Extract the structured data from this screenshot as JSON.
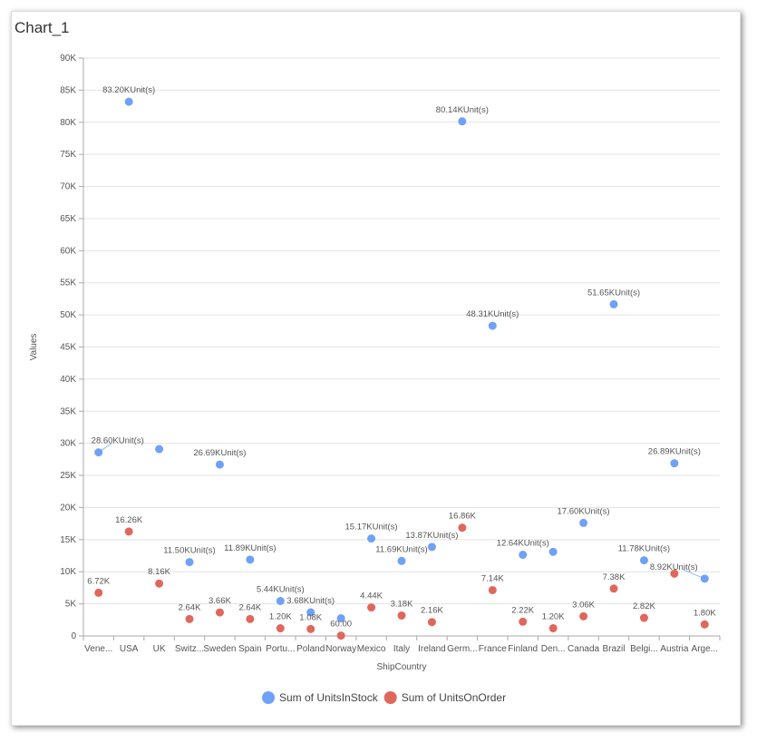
{
  "title": "Chart_1",
  "chart_data": {
    "type": "scatter",
    "xlabel": "ShipCountry",
    "ylabel": "Values",
    "ylim": [
      0,
      90000
    ],
    "yticks": [
      0,
      5000,
      10000,
      15000,
      20000,
      25000,
      30000,
      35000,
      40000,
      45000,
      50000,
      55000,
      60000,
      65000,
      70000,
      75000,
      80000,
      85000,
      90000
    ],
    "ytick_labels": [
      "0",
      "5K",
      "10K",
      "15K",
      "20K",
      "25K",
      "30K",
      "35K",
      "40K",
      "45K",
      "50K",
      "55K",
      "60K",
      "65K",
      "70K",
      "75K",
      "80K",
      "85K",
      "90K"
    ],
    "categories": [
      "Vene...",
      "USA",
      "UK",
      "Switz...",
      "Sweden",
      "Spain",
      "Portu...",
      "Poland",
      "Norway",
      "Mexico",
      "Italy",
      "Ireland",
      "Germ...",
      "France",
      "Finland",
      "Den...",
      "Canada",
      "Brazil",
      "Belgi...",
      "Austria",
      "Arge..."
    ],
    "grid": true,
    "legend_position": "bottom",
    "series": [
      {
        "name": "Sum of UnitsInStock",
        "color": "#6fa1f7",
        "values": [
          28600,
          83200,
          29100,
          11500,
          26690,
          11890,
          5440,
          3680,
          2750,
          15170,
          11690,
          13870,
          80140,
          48310,
          12640,
          13100,
          17600,
          51650,
          11780,
          26890,
          8920
        ],
        "labels": [
          "28.60KUnit(s)",
          "83.20KUnit(s)",
          null,
          "11.50KUnit(s)",
          "26.69KUnit(s)",
          "11.89KUnit(s)",
          "5.44KUnit(s)",
          "3.68KUnit(s)",
          null,
          "15.17KUnit(s)",
          "11.69KUnit(s)",
          "13.87KUnit(s)",
          "80.14KUnit(s)",
          "48.31KUnit(s)",
          "12.64KUnit(s)",
          null,
          "17.60KUnit(s)",
          "51.65KUnit(s)",
          "11.78KUnit(s)",
          "26.89KUnit(s)",
          "8.92KUnit(s)"
        ]
      },
      {
        "name": "Sum of UnitsOnOrder",
        "color": "#e0675c",
        "values": [
          6720,
          16260,
          8160,
          2640,
          3660,
          2640,
          1200,
          1080,
          60,
          4440,
          3180,
          2160,
          16860,
          7140,
          2220,
          1200,
          3060,
          7380,
          2820,
          9700,
          1800
        ],
        "labels": [
          "6.72K",
          "16.26K",
          "8.16K",
          "2.64K",
          "3.66K",
          "2.64K",
          "1.20K",
          "1.08K",
          "60.00",
          "4.44K",
          "3.18K",
          "2.16K",
          "16.86K",
          "7.14K",
          "2.22K",
          "1.20K",
          "3.06K",
          "7.38K",
          "2.82K",
          null,
          "1.80K"
        ]
      }
    ]
  }
}
